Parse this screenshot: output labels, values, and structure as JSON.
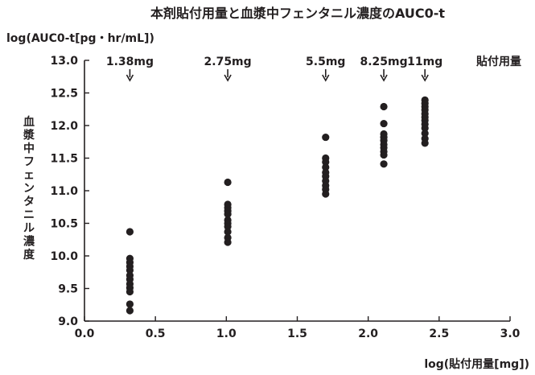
{
  "chart_data": {
    "type": "scatter",
    "title": "本剤貼付用量と血漿中フェンタニル濃度のAUC0-t",
    "xlabel": "log(貼付用量[mg])",
    "ylabel_top": "log(AUC0-t[pg・hr/mL])",
    "ylabel_side": "血漿中フェンタニル濃度",
    "xlim": [
      0.0,
      3.0
    ],
    "ylim": [
      9.0,
      13.0
    ],
    "x_ticks": [
      "0.0",
      "0.5",
      "1.0",
      "1.5",
      "2.0",
      "2.5",
      "3.0"
    ],
    "y_ticks": [
      "9.0",
      "9.5",
      "10.0",
      "10.5",
      "11.0",
      "11.5",
      "12.0",
      "12.5",
      "13.0"
    ],
    "dose_header": "貼付用量",
    "doses": [
      {
        "label": "1.38mg",
        "x": 0.32
      },
      {
        "label": "2.75mg",
        "x": 1.01
      },
      {
        "label": "5.5mg",
        "x": 1.7
      },
      {
        "label": "8.25mg",
        "x": 2.11
      },
      {
        "label": "11mg",
        "x": 2.4
      }
    ],
    "series": [
      {
        "x": 0.32,
        "y": [
          10.37,
          9.96,
          9.9,
          9.84,
          9.78,
          9.7,
          9.64,
          9.57,
          9.51,
          9.45,
          9.26,
          9.16
        ]
      },
      {
        "x": 1.01,
        "y": [
          11.13,
          10.79,
          10.74,
          10.69,
          10.64,
          10.55,
          10.5,
          10.45,
          10.37,
          10.28,
          10.21
        ]
      },
      {
        "x": 1.7,
        "y": [
          11.82,
          11.5,
          11.44,
          11.36,
          11.28,
          11.22,
          11.15,
          11.08,
          11.02,
          10.95
        ]
      },
      {
        "x": 2.11,
        "y": [
          12.29,
          12.03,
          11.87,
          11.82,
          11.77,
          11.71,
          11.66,
          11.6,
          11.55,
          11.41
        ]
      },
      {
        "x": 2.4,
        "y": [
          12.39,
          12.34,
          12.29,
          12.24,
          12.18,
          12.13,
          12.08,
          12.02,
          11.96,
          11.88,
          11.8,
          11.73
        ]
      }
    ],
    "marker_color": "#231f20",
    "grid": false
  }
}
